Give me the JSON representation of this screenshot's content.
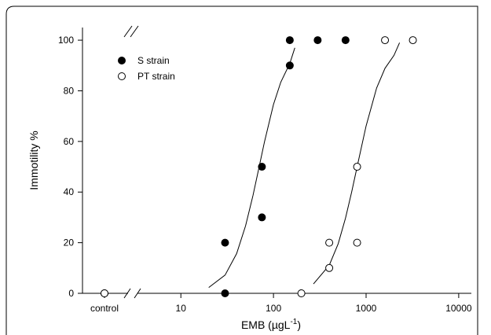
{
  "chart_data": {
    "type": "scatter",
    "ylabel": "Immotility %",
    "xlabel": "EMB (µgL",
    "xlabel_sup": "-1",
    "xlabel_end": ")",
    "control_label": "control",
    "log_x": true,
    "xlim": [
      3.4,
      13700
    ],
    "xticks": [
      10,
      100,
      1000,
      10000
    ],
    "ylim": [
      0,
      105
    ],
    "yticks": [
      0,
      20,
      40,
      60,
      80,
      100
    ],
    "series": [
      {
        "name": "S strain",
        "color": "#000000",
        "filled": true,
        "control": 0,
        "x": [
          30,
          30,
          75,
          75,
          150,
          150,
          300,
          600
        ],
        "values": [
          20,
          0,
          50,
          30,
          100,
          90,
          100,
          100
        ],
        "fit_x": [
          20,
          30,
          40,
          50,
          60,
          70,
          80,
          100,
          120,
          150,
          170
        ],
        "fit_values": [
          2.3,
          7.2,
          15.7,
          26.7,
          38.6,
          50,
          59.9,
          74.6,
          83.4,
          90.8,
          97
        ]
      },
      {
        "name": "PT strain",
        "color": "#000000",
        "filled": false,
        "control": 0,
        "x": [
          200,
          400,
          400,
          800,
          800,
          1600,
          3200
        ],
        "values": [
          0,
          20,
          10,
          50,
          20,
          100,
          100
        ],
        "fit_x": [
          270,
          400,
          500,
          600,
          700,
          800,
          1000,
          1300,
          1600,
          2000,
          2300
        ],
        "fit_values": [
          3.7,
          11.1,
          19.6,
          29.7,
          40.1,
          50,
          66.1,
          81.1,
          88.9,
          94,
          99
        ]
      }
    ]
  }
}
